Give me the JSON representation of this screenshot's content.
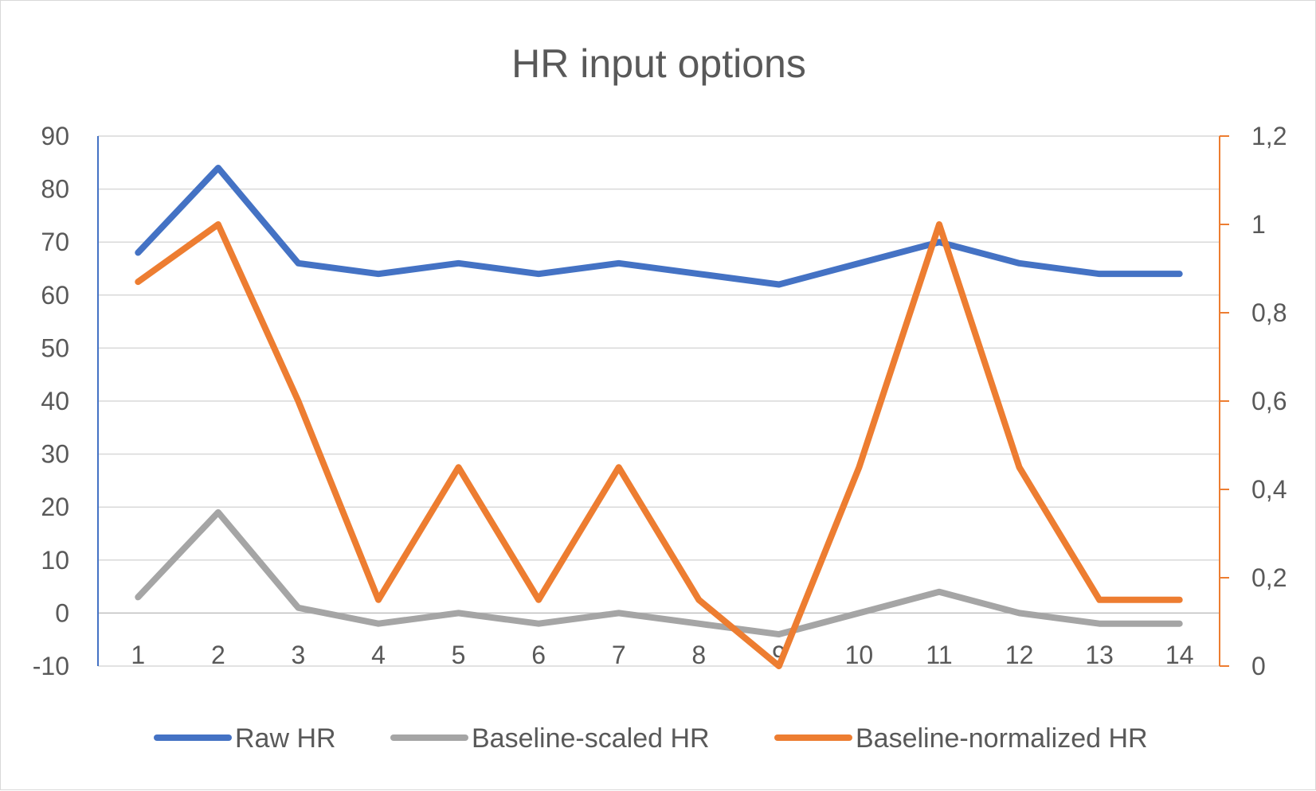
{
  "chart_data": {
    "type": "line",
    "title": "HR input options",
    "categories": [
      "1",
      "2",
      "3",
      "4",
      "5",
      "6",
      "7",
      "8",
      "9",
      "10",
      "11",
      "12",
      "13",
      "14"
    ],
    "y_left": {
      "ticks": [
        "-10",
        "0",
        "10",
        "20",
        "30",
        "40",
        "50",
        "60",
        "70",
        "80",
        "90"
      ],
      "range": [
        -10,
        90
      ],
      "color": "#4472c4"
    },
    "y_right": {
      "ticks": [
        "0",
        "0,2",
        "0,4",
        "0,6",
        "0,8",
        "1",
        "1,2"
      ],
      "range": [
        0,
        1.2
      ],
      "color": "#ed7d31"
    },
    "grid": true,
    "legend_position": "bottom",
    "series": [
      {
        "name": "Raw HR",
        "axis": "left",
        "color": "#4472c4",
        "values": [
          68,
          84,
          66,
          64,
          66,
          64,
          66,
          64,
          62,
          66,
          70,
          66,
          64,
          64
        ]
      },
      {
        "name": "Baseline-scaled HR",
        "axis": "left",
        "color": "#a5a5a5",
        "values": [
          3,
          19,
          1,
          -2,
          0,
          -2,
          0,
          -2,
          -4,
          0,
          4,
          0,
          -2,
          -2
        ]
      },
      {
        "name": "Baseline-normalized HR",
        "axis": "right",
        "color": "#ed7d31",
        "values": [
          0.87,
          1.0,
          0.6,
          0.15,
          0.45,
          0.15,
          0.45,
          0.15,
          0.0,
          0.45,
          1.0,
          0.45,
          0.15,
          0.15
        ]
      }
    ]
  }
}
